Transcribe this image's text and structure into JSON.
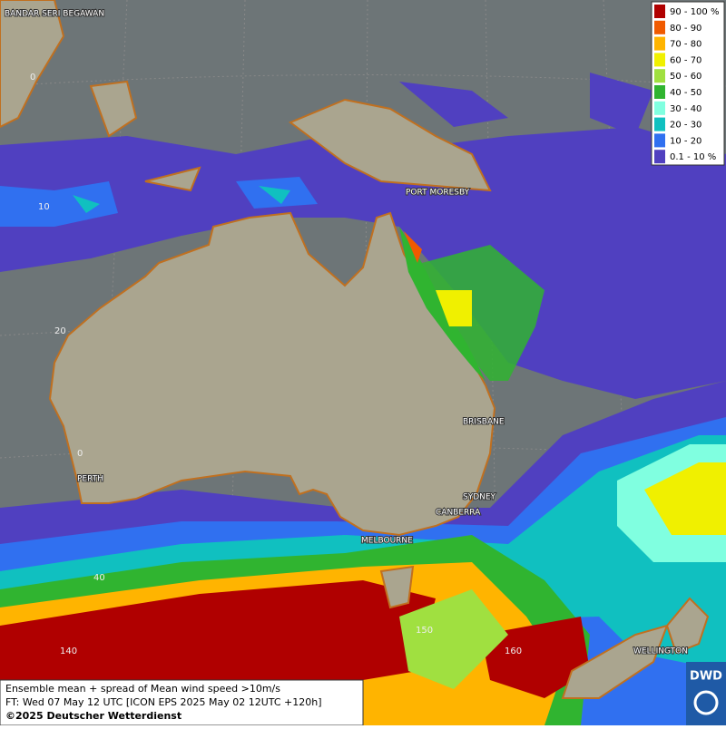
{
  "legend": [
    {
      "label": "90 - 100 %",
      "color": "#b00000"
    },
    {
      "label": "80 - 90",
      "color": "#f05a00"
    },
    {
      "label": "70 - 80",
      "color": "#ffb400"
    },
    {
      "label": "60 - 70",
      "color": "#f0f000"
    },
    {
      "label": "50 - 60",
      "color": "#a0e040"
    },
    {
      "label": "40 - 50",
      "color": "#30b430"
    },
    {
      "label": "30 - 40",
      "color": "#80ffe0"
    },
    {
      "label": "20 - 30",
      "color": "#10c0c0"
    },
    {
      "label": "10 - 20",
      "color": "#3070f0"
    },
    {
      "label": "0.1 - 10 %",
      "color": "#5040c0"
    }
  ],
  "places": [
    "BANDAR SERI BEGAWAN",
    "PORT MORESBY",
    "BRISBANE",
    "PERTH",
    "SYDNEY",
    "CANBERRA",
    "MELBOURNE",
    "WELLINGTON"
  ],
  "grid_labels": [
    "0",
    "10",
    "20",
    "0",
    "40",
    "140",
    "150",
    "160"
  ],
  "caption": {
    "line1": "Ensemble mean + spread of Mean wind speed >10m/s",
    "line2": "FT: Wed 07 May 12 UTC [ICON EPS 2025 May 02 12UTC +120h]",
    "line3": "©2025 Deutscher Wetterdienst"
  },
  "logo": "DWD"
}
